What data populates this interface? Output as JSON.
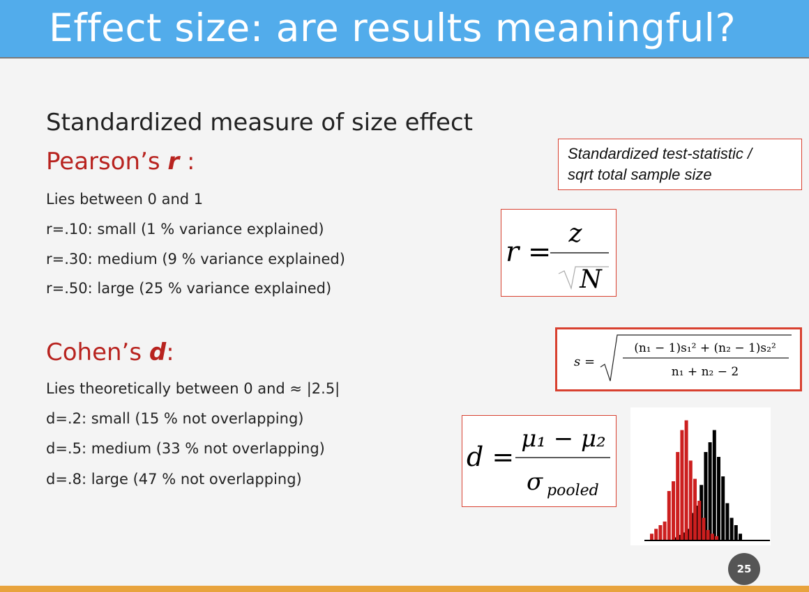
{
  "slide": {
    "title": "Effect size: are results meaningful?",
    "subtitle": "Standardized measure of size effect",
    "page_number": "25"
  },
  "pearson": {
    "heading_prefix": "Pearson’s ",
    "heading_symbol": "r",
    "heading_suffix": " :",
    "lines": [
      "Lies between 0 and 1",
      "r=.10: small (1 % variance explained)",
      "r=.30: medium (9 % variance explained)",
      "r=.50: large (25 % variance explained)"
    ]
  },
  "cohen": {
    "heading_prefix": "Cohen’s ",
    "heading_symbol": "d",
    "heading_suffix": ":",
    "lines": [
      "Lies theoretically between 0 and ≈ |2.5|",
      "d=.2: small (15 % not overlapping)",
      "d=.5: medium (33 % not overlapping)",
      "d=.8: large (47 % not overlapping)"
    ]
  },
  "note": {
    "line1": "Standardized test-statistic /",
    "line2": "sqrt total sample size"
  },
  "formula_r": {
    "lhs": "r =",
    "numerator": "z",
    "denominator": "N"
  },
  "formula_s": {
    "lhs": "s =",
    "numerator": "(n₁ − 1)s₁² + (n₂ − 1)s₂²",
    "denominator": "n₁ + n₂ − 2"
  },
  "formula_d": {
    "lhs": "d =",
    "numerator": "μ₁ − μ₂",
    "denominator_symbol": "σ",
    "denominator_sub": "pooled"
  },
  "histogram": {
    "colors": {
      "group1": "#cc1f1f",
      "group2": "#000000"
    },
    "group1_heights": [
      0.05,
      0.09,
      0.12,
      0.15,
      0.4,
      0.48,
      0.72,
      0.9,
      0.98,
      0.65,
      0.5,
      0.32,
      0.18,
      0.08,
      0.05,
      0.03
    ],
    "group2_heights": [
      0.02,
      0.04,
      0.06,
      0.09,
      0.22,
      0.28,
      0.45,
      0.72,
      0.8,
      0.9,
      0.68,
      0.52,
      0.3,
      0.18,
      0.12,
      0.05
    ]
  },
  "colors": {
    "header": "#52aceb",
    "accent_red": "#b8231f",
    "footer": "#e8a33d",
    "box_border": "#d8402f"
  }
}
